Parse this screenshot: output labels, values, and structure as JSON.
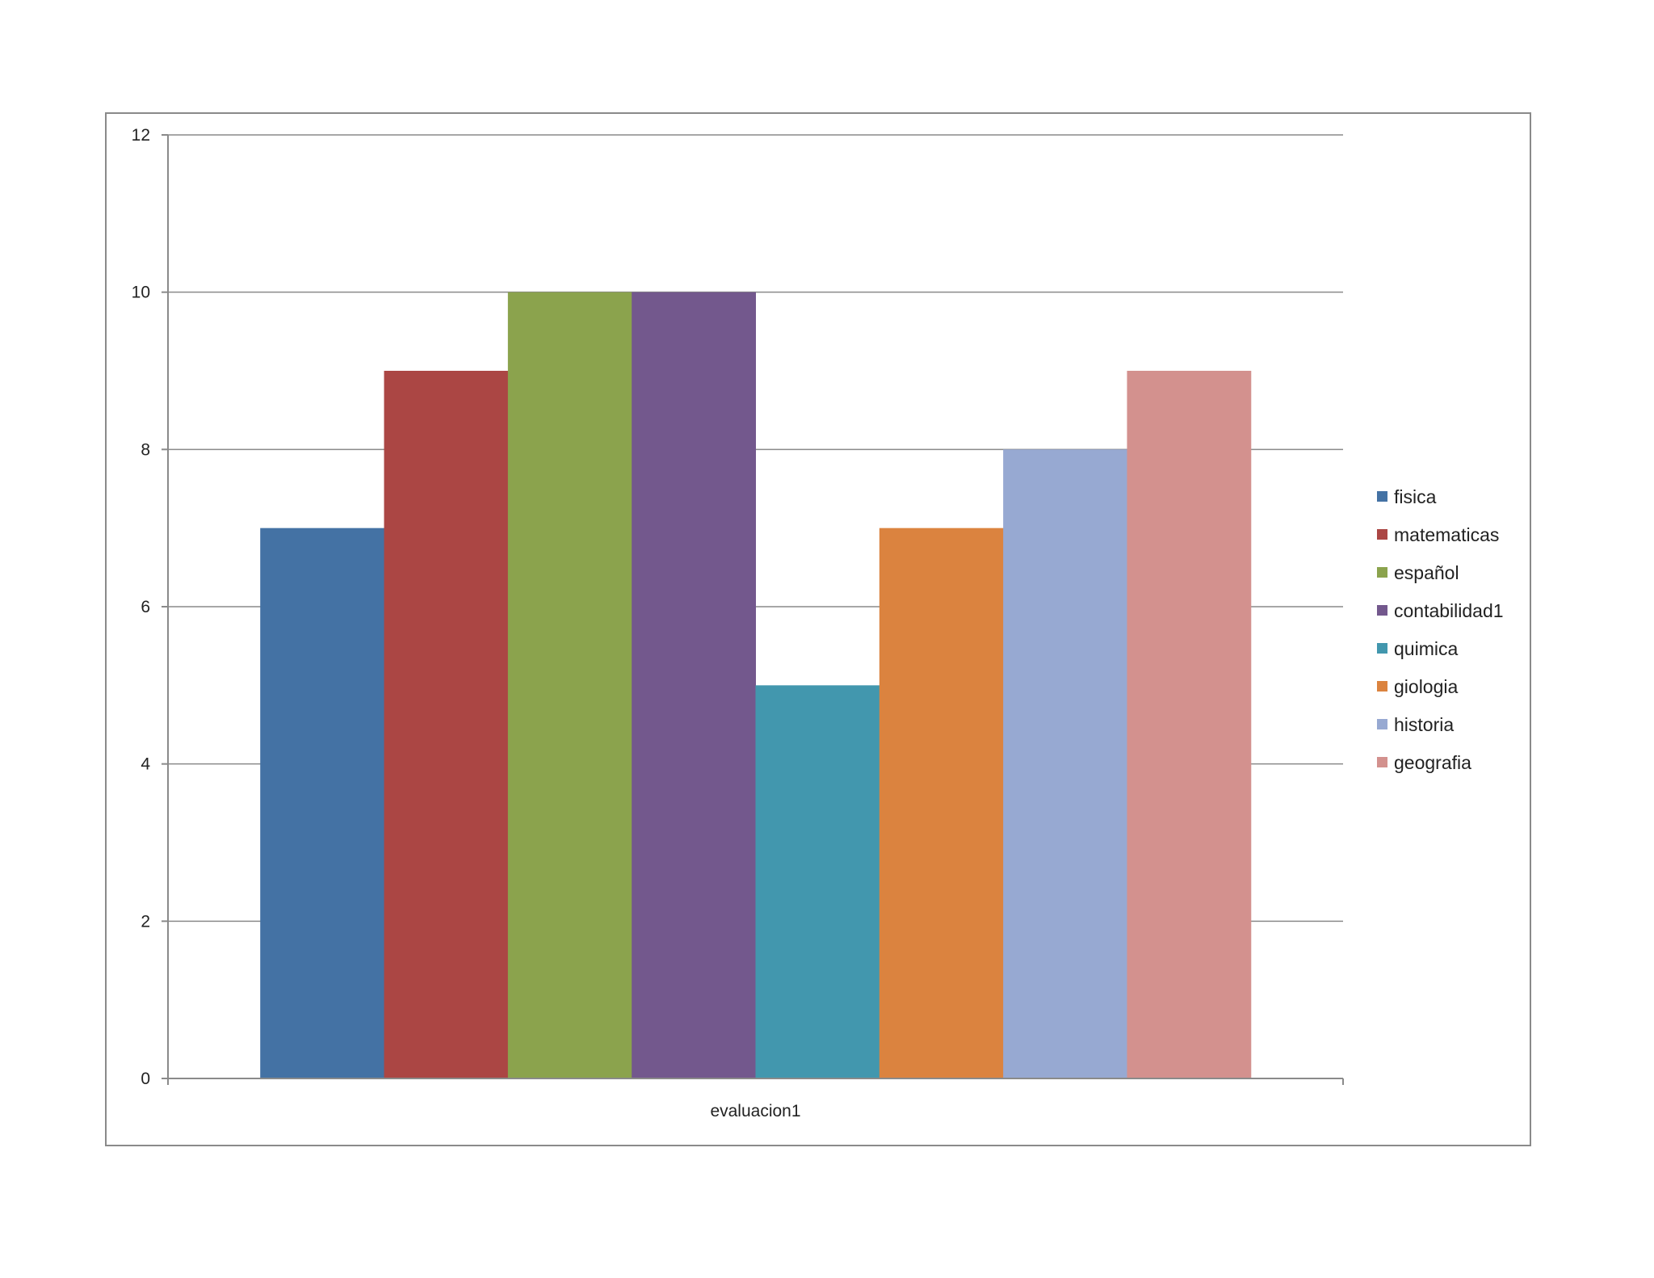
{
  "chart_data": {
    "type": "bar",
    "categories": [
      "evaluacion1"
    ],
    "series": [
      {
        "name": "fisica",
        "values": [
          7
        ],
        "color": "#4472A4"
      },
      {
        "name": "matematicas",
        "values": [
          9
        ],
        "color": "#AB4644"
      },
      {
        "name": "español",
        "values": [
          10
        ],
        "color": "#8BA34D"
      },
      {
        "name": "contabilidad1",
        "values": [
          10
        ],
        "color": "#73588D"
      },
      {
        "name": "quimica",
        "values": [
          5
        ],
        "color": "#4297AE"
      },
      {
        "name": "giologia",
        "values": [
          7
        ],
        "color": "#DB833F"
      },
      {
        "name": "historia",
        "values": [
          8
        ],
        "color": "#97A9D2"
      },
      {
        "name": "geografia",
        "values": [
          9
        ],
        "color": "#D3918E"
      }
    ],
    "ylim": [
      0,
      12
    ],
    "yticks": [
      0,
      2,
      4,
      6,
      8,
      10,
      12
    ],
    "grid": true,
    "legend_position": "right"
  }
}
